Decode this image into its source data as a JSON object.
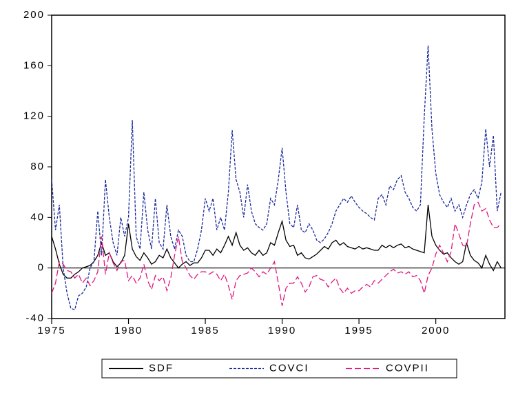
{
  "chart_data": {
    "type": "line",
    "x": [
      1975,
      1975.25,
      1975.5,
      1975.75,
      1976,
      1976.25,
      1976.5,
      1976.75,
      1977,
      1977.25,
      1977.5,
      1977.75,
      1978,
      1978.25,
      1978.5,
      1978.75,
      1979,
      1979.25,
      1979.5,
      1979.75,
      1980,
      1980.25,
      1980.5,
      1980.75,
      1981,
      1981.25,
      1981.5,
      1981.75,
      1982,
      1982.25,
      1982.5,
      1982.75,
      1983,
      1983.25,
      1983.5,
      1983.75,
      1984,
      1984.25,
      1984.5,
      1984.75,
      1985,
      1985.25,
      1985.5,
      1985.75,
      1986,
      1986.25,
      1986.5,
      1986.75,
      1987,
      1987.25,
      1987.5,
      1987.75,
      1988,
      1988.25,
      1988.5,
      1988.75,
      1989,
      1989.25,
      1989.5,
      1989.75,
      1990,
      1990.25,
      1990.5,
      1990.75,
      1991,
      1991.25,
      1991.5,
      1991.75,
      1992,
      1992.25,
      1992.5,
      1992.75,
      1993,
      1993.25,
      1993.5,
      1993.75,
      1994,
      1994.25,
      1994.5,
      1994.75,
      1995,
      1995.25,
      1995.5,
      1995.75,
      1996,
      1996.25,
      1996.5,
      1996.75,
      1997,
      1997.25,
      1997.5,
      1997.75,
      1998,
      1998.25,
      1998.5,
      1998.75,
      1999,
      1999.25,
      1999.5,
      1999.75,
      2000,
      2000.25,
      2000.5,
      2000.75,
      2001,
      2001.25,
      2001.5,
      2001.75,
      2002,
      2002.25,
      2002.5,
      2002.75,
      2003,
      2003.25,
      2003.5,
      2003.75,
      2004,
      2004.25
    ],
    "series": [
      {
        "name": "SDF",
        "color": "#000000",
        "dash": "none",
        "values": [
          25,
          15,
          3,
          -5,
          -8,
          -8,
          -5,
          -3,
          0,
          1,
          2,
          5,
          10,
          20,
          10,
          12,
          5,
          1,
          4,
          10,
          35,
          15,
          9,
          6,
          12,
          8,
          3,
          5,
          10,
          8,
          15,
          8,
          4,
          0,
          3,
          5,
          2,
          4,
          4,
          8,
          14,
          14,
          10,
          15,
          12,
          18,
          25,
          18,
          28,
          18,
          14,
          16,
          12,
          10,
          14,
          10,
          12,
          20,
          18,
          28,
          37,
          22,
          17,
          18,
          10,
          12,
          8,
          7,
          9,
          11,
          14,
          17,
          15,
          20,
          22,
          18,
          20,
          17,
          16,
          15,
          17,
          15,
          16,
          15,
          14,
          14,
          18,
          16,
          18,
          16,
          18,
          19,
          16,
          17,
          15,
          14,
          13,
          12,
          50,
          25,
          18,
          14,
          11,
          12,
          8,
          5,
          3,
          5,
          20,
          10,
          6,
          4,
          0,
          10,
          3,
          -2,
          5,
          0
        ]
      },
      {
        "name": "COVCI",
        "color": "#1a2a9a",
        "dash": "4,2",
        "values": [
          70,
          30,
          50,
          0,
          -20,
          -32,
          -33,
          -22,
          -20,
          -15,
          0,
          5,
          45,
          10,
          70,
          40,
          20,
          10,
          40,
          25,
          40,
          117,
          25,
          15,
          60,
          30,
          15,
          55,
          20,
          15,
          50,
          25,
          15,
          30,
          25,
          10,
          5,
          5,
          15,
          30,
          55,
          45,
          55,
          30,
          40,
          30,
          60,
          109,
          70,
          60,
          40,
          66,
          45,
          35,
          32,
          30,
          35,
          55,
          50,
          70,
          95,
          60,
          35,
          32,
          50,
          30,
          28,
          35,
          30,
          22,
          20,
          23,
          28,
          35,
          45,
          50,
          55,
          52,
          57,
          52,
          48,
          45,
          43,
          40,
          38,
          55,
          58,
          50,
          65,
          62,
          70,
          73,
          60,
          55,
          48,
          45,
          50,
          120,
          176,
          110,
          75,
          58,
          52,
          48,
          55,
          45,
          50,
          40,
          50,
          58,
          62,
          55,
          68,
          110,
          80,
          105,
          45,
          60
        ]
      },
      {
        "name": "COVPII",
        "color": "#e0177f",
        "dash": "9,4",
        "values": [
          -20,
          -12,
          5,
          3,
          -2,
          -3,
          -8,
          -5,
          -12,
          -8,
          -14,
          -10,
          -3,
          25,
          -5,
          12,
          4,
          -2,
          5,
          6,
          -10,
          -6,
          -12,
          -8,
          3,
          -10,
          -17,
          -6,
          -10,
          -7,
          -18,
          -8,
          10,
          25,
          5,
          0,
          -6,
          -9,
          -5,
          -3,
          -3,
          -5,
          -3,
          -5,
          -10,
          -5,
          -14,
          -25,
          -10,
          -6,
          -5,
          -4,
          0,
          -3,
          -7,
          -3,
          -5,
          0,
          5,
          -12,
          -30,
          -16,
          -12,
          -12,
          -7,
          -12,
          -19,
          -15,
          -7,
          -6,
          -9,
          -10,
          -15,
          -11,
          -8,
          -16,
          -20,
          -16,
          -20,
          -18,
          -18,
          -15,
          -13,
          -15,
          -10,
          -12,
          -9,
          -6,
          -3,
          -1,
          -4,
          -3,
          -5,
          -3,
          -7,
          -6,
          -10,
          -20,
          -6,
          0,
          11,
          18,
          12,
          5,
          13,
          35,
          27,
          18,
          17,
          35,
          50,
          52,
          45,
          47,
          38,
          32,
          32,
          35
        ]
      }
    ],
    "xlim": [
      1975,
      2004.5
    ],
    "xticks": [
      1975,
      1980,
      1985,
      1990,
      1995,
      2000
    ],
    "ylim": [
      -40,
      200
    ],
    "yticks": [
      -40,
      0,
      40,
      80,
      120,
      160,
      200
    ],
    "zero_line": true,
    "legend": "bottom"
  }
}
